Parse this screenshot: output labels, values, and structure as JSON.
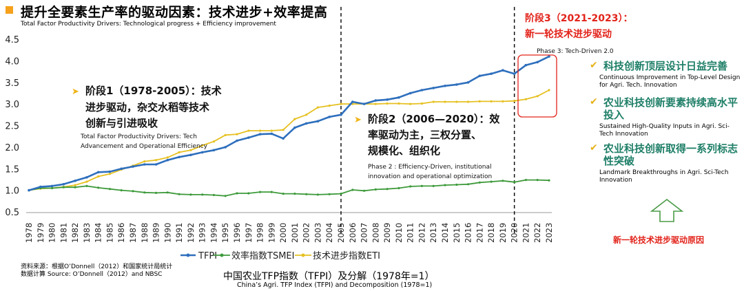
{
  "header": {
    "title": "提升全要素生产率的驱动因素：技术进步+效率提高",
    "subtitle": "Total Factor Productivity Drivers: Technological progress + Efficiency improvement"
  },
  "chart_data": {
    "type": "line",
    "x": [
      "1978",
      "1979",
      "1980",
      "1981",
      "1982",
      "1983",
      "1984",
      "1985",
      "1986",
      "1987",
      "1988",
      "1989",
      "1990",
      "1991",
      "1992",
      "1993",
      "1994",
      "1995",
      "1996",
      "1997",
      "1998",
      "1999",
      "2000",
      "2001",
      "2002",
      "2003",
      "2004",
      "2005",
      "2006",
      "2007",
      "2008",
      "2009",
      "2010",
      "2011",
      "2012",
      "2013",
      "2014",
      "2015",
      "2016",
      "2017",
      "2018",
      "2019",
      "2020",
      "2021",
      "2022",
      "2023"
    ],
    "ylim": [
      0.5,
      4.5
    ],
    "yticks": [
      "0.5",
      "1.0",
      "1.5",
      "2.0",
      "2.5",
      "3.0",
      "3.5",
      "4.0",
      "4.5"
    ],
    "series": [
      {
        "name": "TFPI",
        "color": "#2e6fbd",
        "values": [
          1.0,
          1.08,
          1.1,
          1.14,
          1.22,
          1.3,
          1.42,
          1.43,
          1.5,
          1.55,
          1.6,
          1.6,
          1.7,
          1.77,
          1.82,
          1.88,
          1.93,
          2.0,
          2.15,
          2.22,
          2.3,
          2.31,
          2.2,
          2.45,
          2.55,
          2.6,
          2.7,
          2.75,
          3.05,
          3.0,
          3.08,
          3.1,
          3.15,
          3.25,
          3.32,
          3.37,
          3.42,
          3.45,
          3.5,
          3.65,
          3.7,
          3.78,
          3.7,
          3.9,
          3.97,
          4.1
        ]
      },
      {
        "name": "效率指数TSMEI",
        "color": "#3d9a3a",
        "values": [
          1.0,
          1.05,
          1.05,
          1.07,
          1.07,
          1.1,
          1.06,
          1.03,
          1.0,
          0.98,
          0.95,
          0.94,
          0.95,
          0.91,
          0.9,
          0.9,
          0.89,
          0.87,
          0.93,
          0.93,
          0.96,
          0.96,
          0.92,
          0.92,
          0.91,
          0.9,
          0.91,
          0.92,
          1.01,
          0.99,
          1.02,
          1.03,
          1.05,
          1.09,
          1.1,
          1.1,
          1.12,
          1.13,
          1.14,
          1.18,
          1.2,
          1.22,
          1.19,
          1.24,
          1.24,
          1.23
        ]
      },
      {
        "name": "技术进步指数ETI",
        "color": "#e6c020",
        "values": [
          1.0,
          1.04,
          1.05,
          1.08,
          1.12,
          1.2,
          1.32,
          1.38,
          1.48,
          1.57,
          1.67,
          1.7,
          1.76,
          1.88,
          1.93,
          2.04,
          2.13,
          2.28,
          2.3,
          2.38,
          2.38,
          2.38,
          2.4,
          2.65,
          2.75,
          2.92,
          2.96,
          3.0,
          3.0,
          3.0,
          3.0,
          3.01,
          3.01,
          3.0,
          3.01,
          3.05,
          3.05,
          3.05,
          3.05,
          3.06,
          3.06,
          3.06,
          3.07,
          3.11,
          3.18,
          3.32
        ]
      }
    ],
    "title": "中国农业TFP指数（TFPI）及分解（1978年=1）",
    "title_en": "China’s Agri. TFP Index (TFPI) and Decomposition (1978=1)"
  },
  "annotations": {
    "phase1_cn": [
      "阶段1（1978-2005）：技术",
      "进步驱动，杂交水稻等技术",
      "创新与引进吸收"
    ],
    "phase1_en": [
      "Total Factor Productivity Drivers: Tech",
      "Advancement and Operational Efficiency"
    ],
    "phase2_cn": [
      "阶段2（2006—2020）：效",
      "率驱动为主，三权分置、",
      "规模化、组织化"
    ],
    "phase2_en": [
      "Phase 2 : Efficiency-Driven, institutional",
      "innovation and operational optimization"
    ],
    "phase3_cn": [
      "阶段3（2021-2023）：",
      "新一轮技术进步驱动"
    ],
    "phase3_en": "Phase 3: Tech-Driven 2.0"
  },
  "right_panel": {
    "items": [
      {
        "cn": "科技创新顶层设计日益完善",
        "en": "Continuous Improvement in Top-Level Design for Agri. Tech. Innovation"
      },
      {
        "cn": "农业科技创新要素持续高水平投入",
        "en": "Sustained High-Quality Inputs in Agri. Sci-Tech Innovation"
      },
      {
        "cn": "农业科技创新取得一系列标志性突破",
        "en": "Landmark Breakthroughs in Agri. Sci-Tech Innovation"
      }
    ],
    "reason_label": "新一轮技术进步驱动原因"
  },
  "source_note": [
    "资料来源：根据O’Donnell（2012）和国家统计局统计",
    "数据计算  Source: O’Donnell（2012）and NBSC"
  ],
  "colors": {
    "accent_red": "#e2231a",
    "accent_green": "#1f7f68",
    "accent_gold": "#f0b418"
  }
}
